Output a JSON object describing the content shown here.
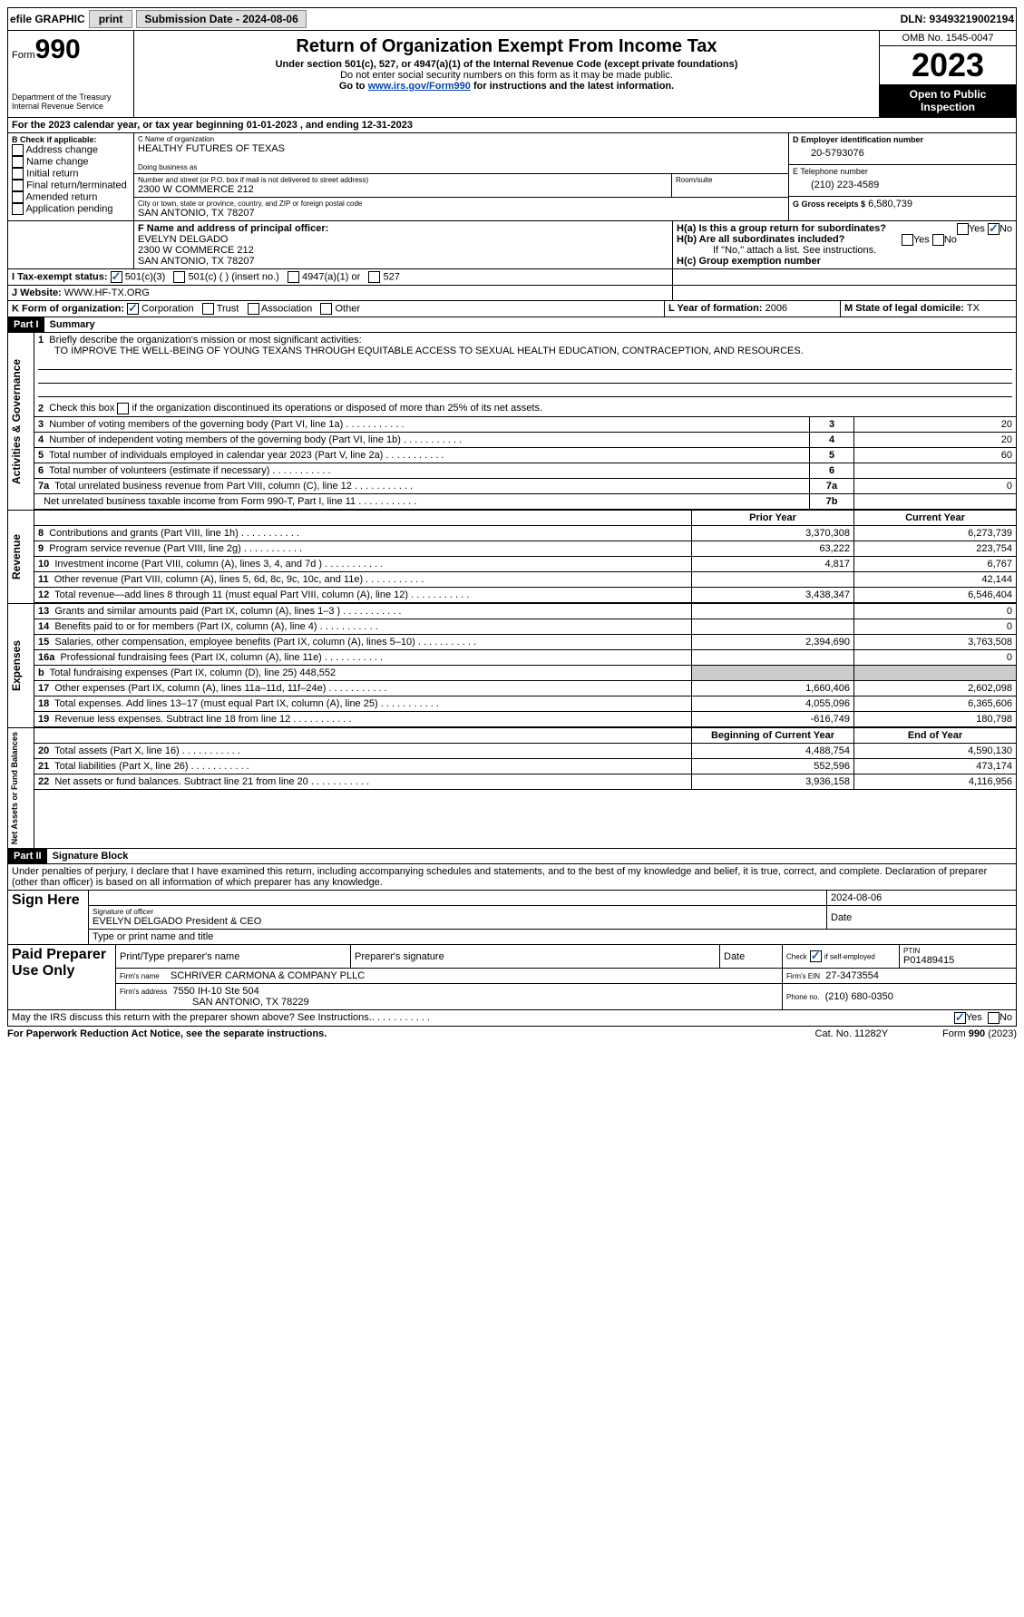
{
  "topbar": {
    "efile": "efile GRAPHIC",
    "print": "print",
    "sub_label": "Submission Date - 2024-08-06",
    "dln": "DLN: 93493219002194"
  },
  "header": {
    "form_prefix": "Form",
    "form_num": "990",
    "dept": "Department of the Treasury Internal Revenue Service",
    "title": "Return of Organization Exempt From Income Tax",
    "subtitle": "Under section 501(c), 527, or 4947(a)(1) of the Internal Revenue Code (except private foundations)",
    "note1": "Do not enter social security numbers on this form as it may be made public.",
    "note2_pre": "Go to ",
    "note2_link": "www.irs.gov/Form990",
    "note2_post": " for instructions and the latest information.",
    "omb": "OMB No. 1545-0047",
    "year": "2023",
    "inspect": "Open to Public Inspection"
  },
  "period": {
    "line_a": "For the 2023 calendar year, or tax year beginning 01-01-2023    , and ending 12-31-2023"
  },
  "boxB": {
    "label": "B Check if applicable:",
    "items": [
      "Address change",
      "Name change",
      "Initial return",
      "Final return/terminated",
      "Amended return",
      "Application pending"
    ]
  },
  "boxC": {
    "name_lbl": "C Name of organization",
    "name": "HEALTHY FUTURES OF TEXAS",
    "dba_lbl": "Doing business as",
    "dba": "",
    "street_lbl": "Number and street (or P.O. box if mail is not delivered to street address)",
    "street": "2300 W COMMERCE 212",
    "room_lbl": "Room/suite",
    "city_lbl": "City or town, state or province, country, and ZIP or foreign postal code",
    "city": "SAN ANTONIO, TX  78207"
  },
  "boxD": {
    "lbl": "D Employer identification number",
    "val": "20-5793076"
  },
  "boxE": {
    "lbl": "E Telephone number",
    "val": "(210) 223-4589"
  },
  "boxG": {
    "lbl": "G Gross receipts $",
    "val": "6,580,739"
  },
  "boxF": {
    "lbl": "F  Name and address of principal officer:",
    "name": "EVELYN DELGADO",
    "addr1": "2300 W COMMERCE 212",
    "addr2": "SAN ANTONIO, TX  78207"
  },
  "boxH": {
    "ha": "H(a)  Is this a group return for subordinates?",
    "hb": "H(b)  Are all subordinates included?",
    "hb_note": "If \"No,\" attach a list. See instructions.",
    "hc": "H(c)  Group exemption number"
  },
  "boxI": {
    "lbl": "I   Tax-exempt status:",
    "c1": "501(c)(3)",
    "c2": "501(c) (  ) (insert no.)",
    "c3": "4947(a)(1) or",
    "c4": "527"
  },
  "boxJ": {
    "lbl": "J   Website:",
    "val": "WWW.HF-TX.ORG"
  },
  "boxK": {
    "lbl": "K Form of organization:",
    "o1": "Corporation",
    "o2": "Trust",
    "o3": "Association",
    "o4": "Other"
  },
  "boxL": {
    "lbl": "L Year of formation:",
    "val": "2006"
  },
  "boxM": {
    "lbl": "M State of legal domicile:",
    "val": "TX"
  },
  "part1": {
    "hdr": "Part I",
    "title": "Summary",
    "side1": "Activities & Governance",
    "side2": "Revenue",
    "side3": "Expenses",
    "side4": "Net Assets or Fund Balances",
    "l1_lbl": "Briefly describe the organization's mission or most significant activities:",
    "l1_txt": "TO IMPROVE THE WELL-BEING OF YOUNG TEXANS THROUGH EQUITABLE ACCESS TO SEXUAL HEALTH EDUCATION, CONTRACEPTION, AND RESOURCES.",
    "l2": "Check this box         if the organization discontinued its operations or disposed of more than 25% of its net assets.",
    "rows_gov": [
      {
        "n": "3",
        "t": "Number of voting members of the governing body (Part VI, line 1a)",
        "box": "3",
        "v": "20"
      },
      {
        "n": "4",
        "t": "Number of independent voting members of the governing body (Part VI, line 1b)",
        "box": "4",
        "v": "20"
      },
      {
        "n": "5",
        "t": "Total number of individuals employed in calendar year 2023 (Part V, line 2a)",
        "box": "5",
        "v": "60"
      },
      {
        "n": "6",
        "t": "Total number of volunteers (estimate if necessary)",
        "box": "6",
        "v": ""
      },
      {
        "n": "7a",
        "t": "Total unrelated business revenue from Part VIII, column (C), line 12",
        "box": "7a",
        "v": "0"
      },
      {
        "n": "",
        "t": "Net unrelated business taxable income from Form 990-T, Part I, line 11",
        "box": "7b",
        "v": ""
      }
    ],
    "col_prior": "Prior Year",
    "col_curr": "Current Year",
    "col_begin": "Beginning of Current Year",
    "col_end": "End of Year",
    "rev": [
      {
        "n": "8",
        "t": "Contributions and grants (Part VIII, line 1h)",
        "p": "3,370,308",
        "c": "6,273,739"
      },
      {
        "n": "9",
        "t": "Program service revenue (Part VIII, line 2g)",
        "p": "63,222",
        "c": "223,754"
      },
      {
        "n": "10",
        "t": "Investment income (Part VIII, column (A), lines 3, 4, and 7d )",
        "p": "4,817",
        "c": "6,767"
      },
      {
        "n": "11",
        "t": "Other revenue (Part VIII, column (A), lines 5, 6d, 8c, 9c, 10c, and 11e)",
        "p": "",
        "c": "42,144"
      },
      {
        "n": "12",
        "t": "Total revenue—add lines 8 through 11 (must equal Part VIII, column (A), line 12)",
        "p": "3,438,347",
        "c": "6,546,404"
      }
    ],
    "exp": [
      {
        "n": "13",
        "t": "Grants and similar amounts paid (Part IX, column (A), lines 1–3 )",
        "p": "",
        "c": "0"
      },
      {
        "n": "14",
        "t": "Benefits paid to or for members (Part IX, column (A), line 4)",
        "p": "",
        "c": "0"
      },
      {
        "n": "15",
        "t": "Salaries, other compensation, employee benefits (Part IX, column (A), lines 5–10)",
        "p": "2,394,690",
        "c": "3,763,508"
      },
      {
        "n": "16a",
        "t": "Professional fundraising fees (Part IX, column (A), line 11e)",
        "p": "",
        "c": "0"
      },
      {
        "n": "b",
        "t": "Total fundraising expenses (Part IX, column (D), line 25) 448,552",
        "p": "shade",
        "c": "shade"
      },
      {
        "n": "17",
        "t": "Other expenses (Part IX, column (A), lines 11a–11d, 11f–24e)",
        "p": "1,660,406",
        "c": "2,602,098"
      },
      {
        "n": "18",
        "t": "Total expenses. Add lines 13–17 (must equal Part IX, column (A), line 25)",
        "p": "4,055,096",
        "c": "6,365,606"
      },
      {
        "n": "19",
        "t": "Revenue less expenses. Subtract line 18 from line 12",
        "p": "-616,749",
        "c": "180,798"
      }
    ],
    "net": [
      {
        "n": "20",
        "t": "Total assets (Part X, line 16)",
        "p": "4,488,754",
        "c": "4,590,130"
      },
      {
        "n": "21",
        "t": "Total liabilities (Part X, line 26)",
        "p": "552,596",
        "c": "473,174"
      },
      {
        "n": "22",
        "t": "Net assets or fund balances. Subtract line 21 from line 20",
        "p": "3,936,158",
        "c": "4,116,956"
      }
    ]
  },
  "part2": {
    "hdr": "Part II",
    "title": "Signature Block",
    "decl": "Under penalties of perjury, I declare that I have examined this return, including accompanying schedules and statements, and to the best of my knowledge and belief, it is true, correct, and complete. Declaration of preparer (other than officer) is based on all information of which preparer has any knowledge.",
    "sign_here": "Sign Here",
    "sig_officer": "Signature of officer",
    "sig_name": "EVELYN DELGADO  President & CEO",
    "sig_type": "Type or print name and title",
    "date_lbl": "Date",
    "date_val": "2024-08-06",
    "paid": "Paid Preparer Use Only",
    "prep_name_lbl": "Print/Type preparer's name",
    "prep_sig_lbl": "Preparer's signature",
    "check_lbl": "Check         if self-employed",
    "ptin_lbl": "PTIN",
    "ptin": "P01489415",
    "firm_name_lbl": "Firm's name",
    "firm_name": "SCHRIVER CARMONA & COMPANY PLLC",
    "firm_ein_lbl": "Firm's EIN",
    "firm_ein": "27-3473554",
    "firm_addr_lbl": "Firm's address",
    "firm_addr1": "7550 IH-10 Ste 504",
    "firm_addr2": "SAN ANTONIO, TX  78229",
    "phone_lbl": "Phone no.",
    "phone": "(210) 680-0350",
    "discuss": "May the IRS discuss this return with the preparer shown above? See Instructions.",
    "yes": "Yes",
    "no": "No"
  },
  "footer": {
    "left": "For Paperwork Reduction Act Notice, see the separate instructions.",
    "mid": "Cat. No. 11282Y",
    "right": "Form 990 (2023)"
  }
}
